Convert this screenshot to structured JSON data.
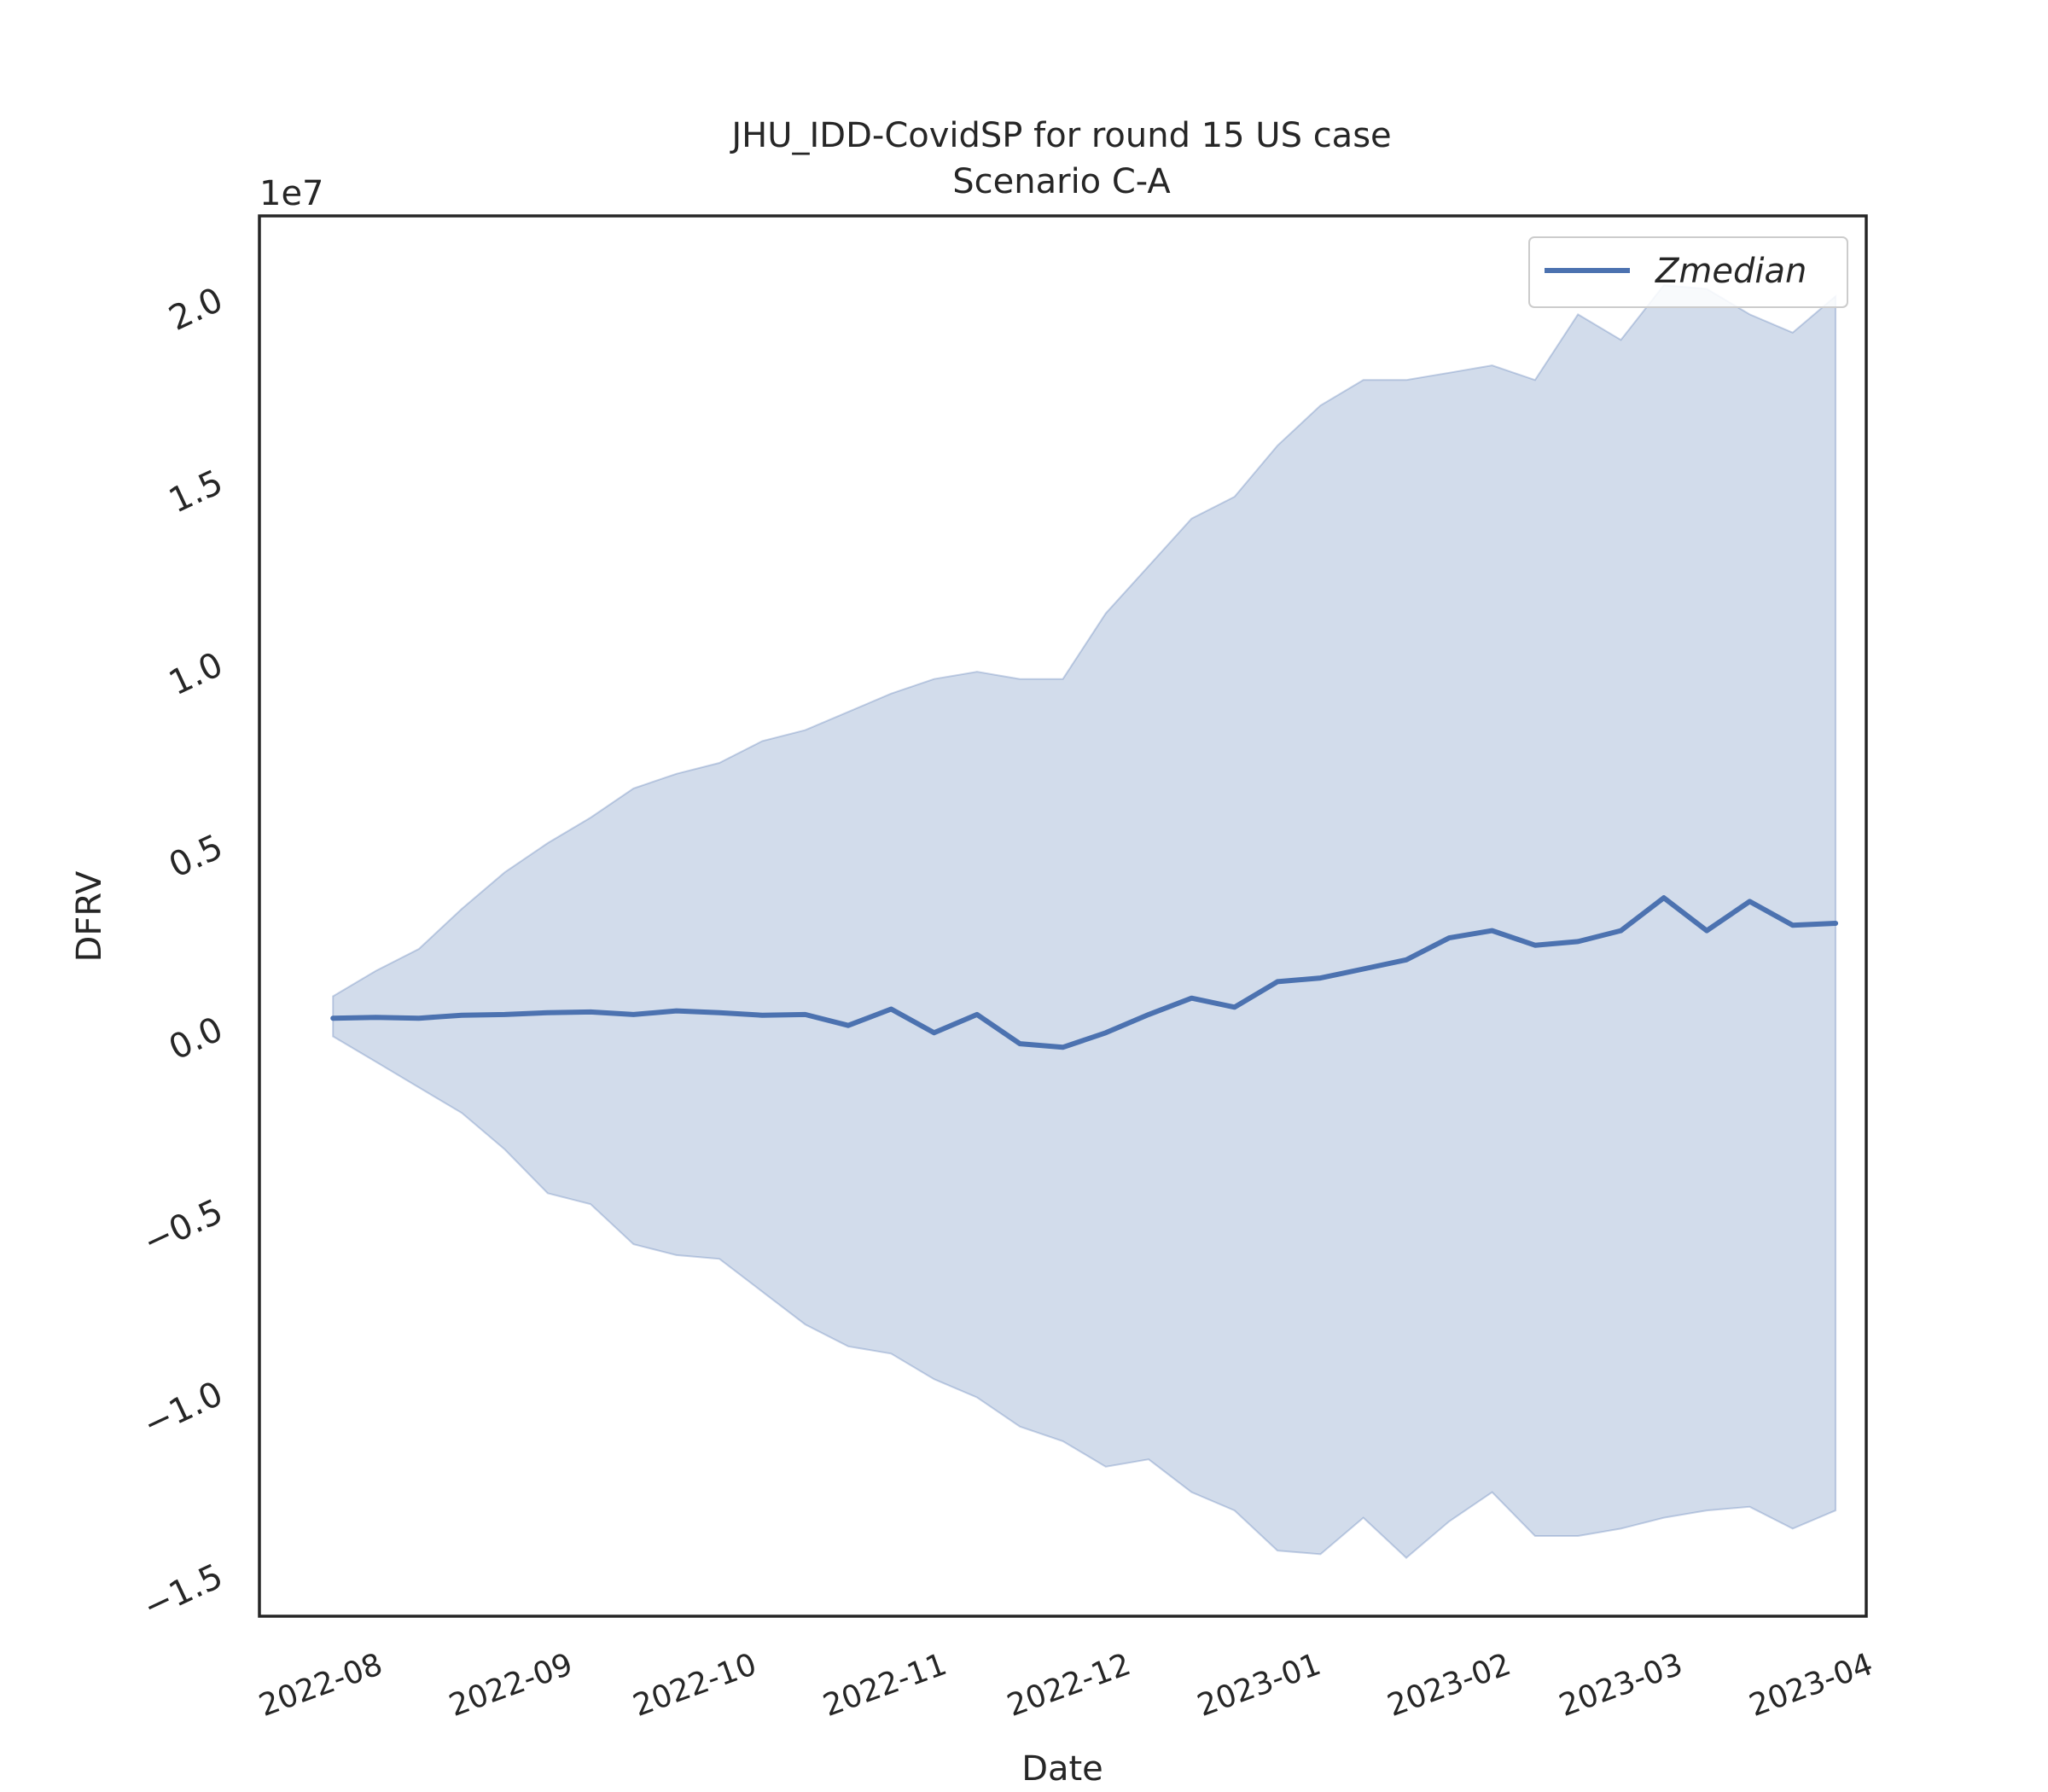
{
  "chart_data": {
    "type": "area",
    "title": "JHU_IDD-CovidSP for round 15 US case",
    "subtitle": "Scenario C-A",
    "xlabel": "Date",
    "ylabel": "DFRV",
    "y_offset_label": "1e7",
    "y_multiplier": 10000000,
    "ylim": [
      -16.2,
      22.2
    ],
    "xlim": [
      "2022-07-13",
      "2023-04-01"
    ],
    "grid": false,
    "legend_position": "top-right",
    "yticks": [
      -1.5,
      -1.0,
      -0.5,
      0.0,
      0.5,
      1.0,
      1.5,
      2.0
    ],
    "ytick_labels": [
      "−1.5",
      "−1.0",
      "−0.5",
      "0.0",
      "0.5",
      "1.0",
      "1.5",
      "2.0"
    ],
    "xticks": [
      "2022-08-01",
      "2022-09-01",
      "2022-10-01",
      "2022-11-01",
      "2022-12-01",
      "2023-01-01",
      "2023-02-01",
      "2023-03-01",
      "2023-04-01"
    ],
    "xtick_labels": [
      "2022-08",
      "2022-09",
      "2022-10",
      "2022-11",
      "2022-12",
      "2023-01",
      "2023-02",
      "2023-03",
      "2023-04"
    ],
    "x": [
      "2022-07-25",
      "2022-08-01",
      "2022-08-08",
      "2022-08-15",
      "2022-08-22",
      "2022-08-29",
      "2022-09-05",
      "2022-09-12",
      "2022-09-19",
      "2022-09-26",
      "2022-10-03",
      "2022-10-10",
      "2022-10-17",
      "2022-10-24",
      "2022-10-31",
      "2022-11-07",
      "2022-11-14",
      "2022-11-21",
      "2022-11-28",
      "2022-12-05",
      "2022-12-12",
      "2022-12-19",
      "2022-12-26",
      "2023-01-02",
      "2023-01-09",
      "2023-01-16",
      "2023-01-23",
      "2023-01-30",
      "2023-02-06",
      "2023-02-13",
      "2023-02-20",
      "2023-02-27",
      "2023-03-06",
      "2023-03-13",
      "2023-03-20",
      "2023-03-27"
    ],
    "series": [
      {
        "name": "Zmedian",
        "color": "#4c72b0",
        "values": [
          0.2,
          0.22,
          0.2,
          0.28,
          0.3,
          0.35,
          0.37,
          0.3,
          0.4,
          0.35,
          0.28,
          0.3,
          0.0,
          0.45,
          -0.2,
          0.3,
          -0.5,
          -0.6,
          -0.2,
          0.3,
          0.75,
          0.5,
          1.2,
          1.3,
          1.55,
          1.8,
          2.4,
          2.6,
          2.2,
          2.3,
          2.6,
          3.5,
          2.6,
          3.4,
          2.75,
          2.8
        ]
      }
    ],
    "band": {
      "color": "#4c72b0",
      "lower": [
        -0.3,
        -1.0,
        -1.7,
        -2.4,
        -3.4,
        -4.6,
        -4.9,
        -6.0,
        -6.3,
        -6.4,
        -7.3,
        -8.2,
        -8.8,
        -9.0,
        -9.7,
        -10.2,
        -11.0,
        -11.4,
        -12.1,
        -11.9,
        -12.8,
        -13.3,
        -14.4,
        -14.5,
        -13.5,
        -14.6,
        -13.6,
        -12.8,
        -14.0,
        -14.0,
        -13.8,
        -13.5,
        -13.3,
        -13.2,
        -13.8,
        -13.3
      ],
      "upper": [
        0.8,
        1.5,
        2.1,
        3.2,
        4.2,
        5.0,
        5.7,
        6.5,
        6.9,
        7.2,
        7.8,
        8.1,
        8.6,
        9.1,
        9.5,
        9.7,
        9.5,
        9.5,
        11.3,
        12.6,
        13.9,
        14.5,
        15.9,
        17.0,
        17.7,
        17.7,
        17.9,
        18.1,
        17.7,
        19.5,
        18.8,
        20.3,
        20.2,
        19.5,
        19.0,
        20.0
      ]
    }
  }
}
